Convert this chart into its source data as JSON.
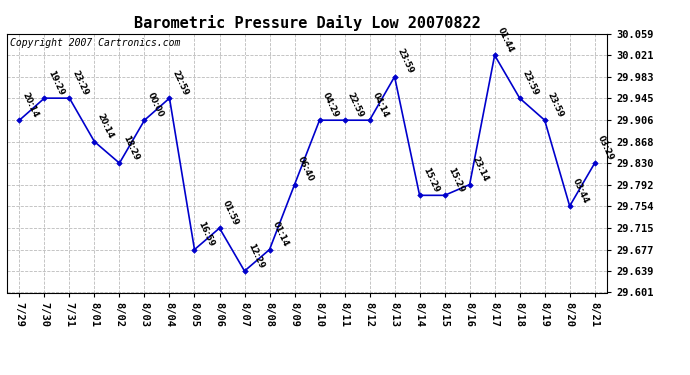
{
  "title": "Barometric Pressure Daily Low 20070822",
  "copyright": "Copyright 2007 Cartronics.com",
  "x_labels": [
    "7/29",
    "7/30",
    "7/31",
    "8/01",
    "8/02",
    "8/03",
    "8/04",
    "8/05",
    "8/06",
    "8/07",
    "8/08",
    "8/09",
    "8/10",
    "8/11",
    "8/12",
    "8/13",
    "8/14",
    "8/15",
    "8/16",
    "8/17",
    "8/18",
    "8/19",
    "8/20",
    "8/21"
  ],
  "y_values": [
    29.906,
    29.945,
    29.945,
    29.868,
    29.83,
    29.906,
    29.945,
    29.677,
    29.715,
    29.639,
    29.677,
    29.792,
    29.906,
    29.906,
    29.906,
    29.983,
    29.773,
    29.773,
    29.792,
    30.021,
    29.945,
    29.906,
    29.754,
    29.83
  ],
  "point_labels": [
    "20:14",
    "19:29",
    "23:29",
    "20:14",
    "18:29",
    "00:00",
    "22:59",
    "16:59",
    "01:59",
    "12:29",
    "01:14",
    "06:40",
    "04:29",
    "22:59",
    "04:14",
    "23:59",
    "15:29",
    "15:29",
    "23:14",
    "01:44",
    "23:59",
    "23:59",
    "03:44",
    "03:29"
  ],
  "y_ticks": [
    29.601,
    29.639,
    29.677,
    29.715,
    29.754,
    29.792,
    29.83,
    29.868,
    29.906,
    29.945,
    29.983,
    30.021,
    30.059
  ],
  "y_min": 29.601,
  "y_max": 30.059,
  "line_color": "#0000cc",
  "marker_color": "#0000cc",
  "bg_color": "#ffffff",
  "grid_color": "#bbbbbb",
  "title_fontsize": 11,
  "tick_fontsize": 7.5,
  "point_label_fontsize": 6,
  "copyright_fontsize": 7
}
